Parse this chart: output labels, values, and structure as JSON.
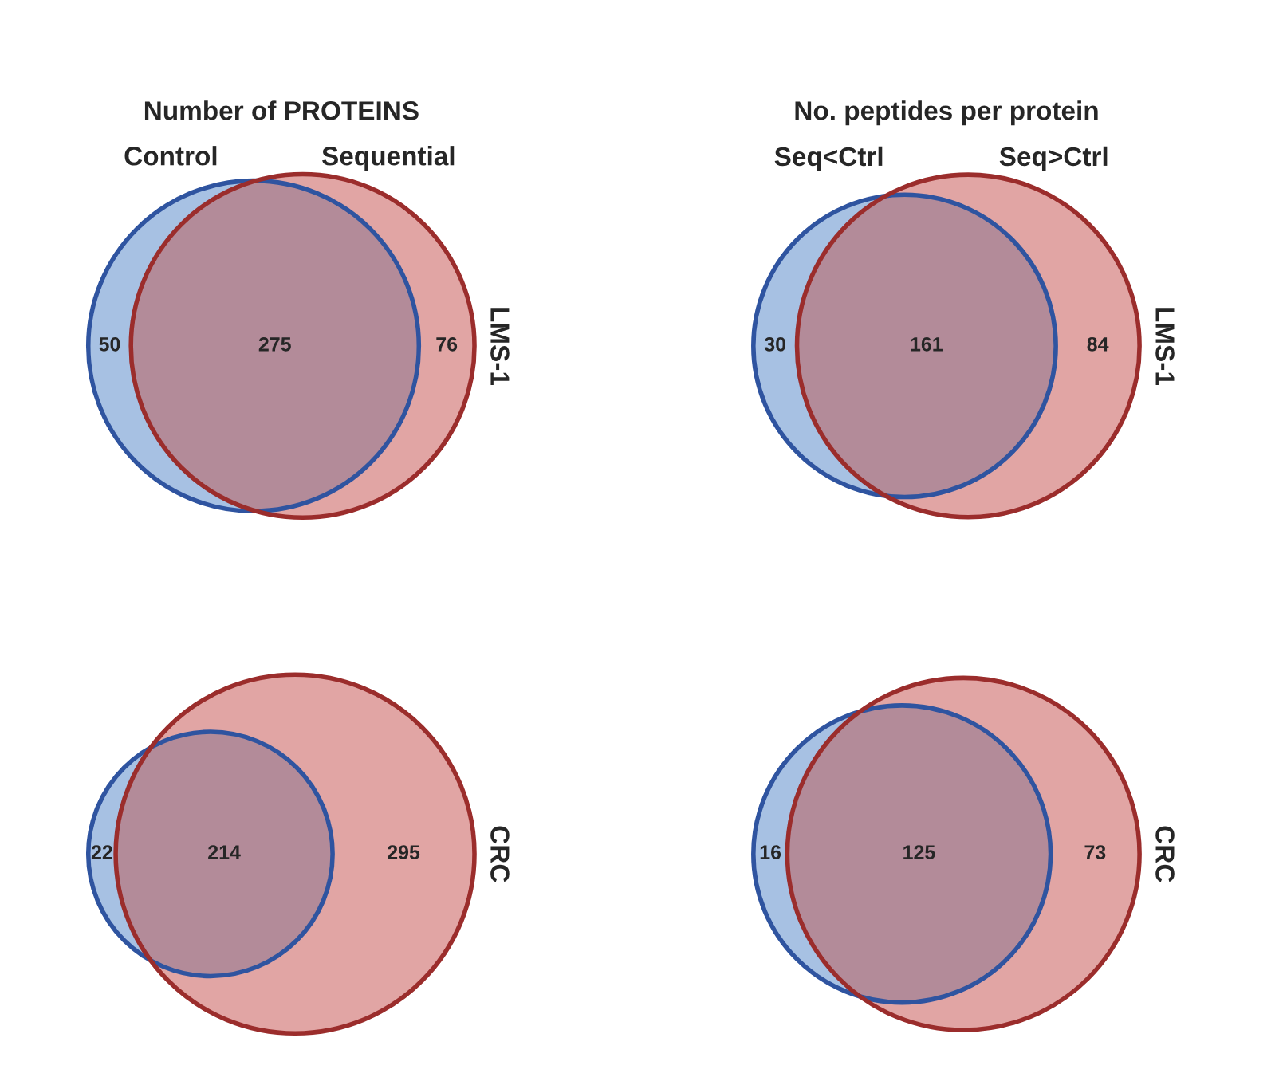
{
  "chart_data": [
    {
      "type": "other",
      "title": "Number of PROTEINS",
      "ylabel": "LMS-1",
      "categories": [
        null,
        null,
        null
      ],
      "values": [
        50,
        275,
        76
      ],
      "colors": [
        "#a7c1e3",
        "#b38b99",
        "#e1a5a4"
      ],
      "data_labels": true,
      "annotations": [
        "Control",
        "Sequential"
      ]
    },
    {
      "type": "other",
      "title": "No. peptides per protein",
      "ylabel": "LMS-1",
      "categories": [
        null,
        null,
        null
      ],
      "values": [
        30,
        161,
        84
      ],
      "colors": [
        "#a7c1e3",
        "#b38b99",
        "#e1a5a4"
      ],
      "data_labels": true,
      "annotations": [
        "Seq<Ctrl",
        "Seq>Ctrl"
      ]
    },
    {
      "type": "other",
      "ylabel": "CRC",
      "categories": [
        null,
        null,
        null
      ],
      "values": [
        22,
        214,
        295
      ],
      "colors": [
        "#a7c1e3",
        "#b38b99",
        "#e1a5a4"
      ],
      "data_labels": true
    },
    {
      "type": "other",
      "ylabel": "CRC",
      "categories": [
        null,
        null,
        null
      ],
      "values": [
        16,
        125,
        73
      ],
      "colors": [
        "#a7c1e3",
        "#b38b99",
        "#e1a5a4"
      ],
      "data_labels": true
    }
  ]
}
